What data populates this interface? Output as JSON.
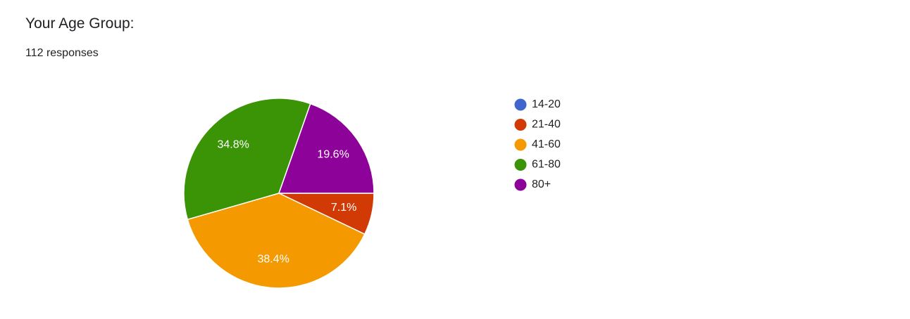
{
  "chart_data": {
    "type": "pie",
    "title": "Your Age Group:",
    "subtitle": "112 responses",
    "categories": [
      "14-20",
      "21-40",
      "41-60",
      "61-80",
      "80+"
    ],
    "values": [
      0,
      7.1,
      38.4,
      34.8,
      19.6
    ],
    "value_labels": [
      null,
      "7.1%",
      "38.4%",
      "34.8%",
      "19.6%"
    ],
    "colors": [
      "#3e66cc",
      "#d23a05",
      "#f49a00",
      "#3a9406",
      "#8d0298"
    ],
    "legend": "right"
  }
}
